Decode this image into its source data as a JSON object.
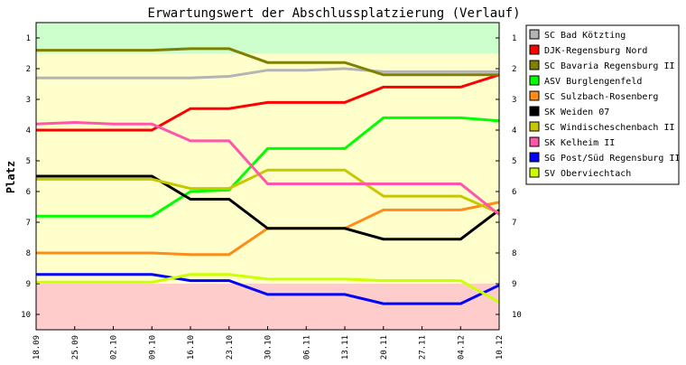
{
  "chart_data": {
    "type": "line",
    "title": "Erwartungswert der Abschlussplatzierung (Verlauf)",
    "ylabel": "Platz",
    "xlabel": "",
    "ylim": [
      10.5,
      0.5
    ],
    "y_inverted": true,
    "y_ticks": [
      "1",
      "2",
      "3",
      "4",
      "5",
      "6",
      "7",
      "8",
      "9",
      "10"
    ],
    "x": [
      "18.09",
      "25.09",
      "02.10",
      "09.10",
      "16.10",
      "23.10",
      "30.10",
      "06.11",
      "13.11",
      "20.11",
      "27.11",
      "04.12",
      "10.12"
    ],
    "zones": [
      {
        "from": 0.5,
        "to": 1.5,
        "color": "#ccffcc"
      },
      {
        "from": 1.5,
        "to": 9.0,
        "color": "#ffffcc"
      },
      {
        "from": 9.0,
        "to": 10.5,
        "color": "#ffcccc"
      }
    ],
    "legend_position": "right",
    "grid": false,
    "series": [
      {
        "name": "SC Bad Kötzting",
        "color": "#b4b4b4",
        "values": [
          2.3,
          2.3,
          2.3,
          2.3,
          2.3,
          2.25,
          2.05,
          2.05,
          2.0,
          2.1,
          2.1,
          2.1,
          2.1
        ]
      },
      {
        "name": "DJK-Regensburg Nord",
        "color": "#ff0000",
        "values": [
          4.0,
          4.0,
          4.0,
          4.0,
          3.3,
          3.3,
          3.1,
          3.1,
          3.1,
          2.6,
          2.6,
          2.6,
          2.2
        ]
      },
      {
        "name": "SC Bavaria Regensburg II",
        "color": "#808000",
        "values": [
          1.4,
          1.4,
          1.4,
          1.4,
          1.35,
          1.35,
          1.8,
          1.8,
          1.8,
          2.2,
          2.2,
          2.2,
          2.2
        ]
      },
      {
        "name": "ASV Burglengenfeld",
        "color": "#00ff00",
        "values": [
          6.8,
          6.8,
          6.8,
          6.8,
          6.0,
          5.95,
          4.6,
          4.6,
          4.6,
          3.6,
          3.6,
          3.6,
          3.7
        ]
      },
      {
        "name": "SC Sulzbach-Rosenberg",
        "color": "#ff8c1a",
        "values": [
          8.0,
          8.0,
          8.0,
          8.0,
          8.05,
          8.05,
          7.2,
          7.2,
          7.2,
          6.6,
          6.6,
          6.6,
          6.35
        ]
      },
      {
        "name": "SK Weiden 07",
        "color": "#000000",
        "values": [
          5.5,
          5.5,
          5.5,
          5.5,
          6.25,
          6.25,
          7.2,
          7.2,
          7.2,
          7.55,
          7.55,
          7.55,
          6.6
        ]
      },
      {
        "name": "SC Windischeschenbach II",
        "color": "#c8c800",
        "values": [
          5.6,
          5.6,
          5.6,
          5.6,
          5.9,
          5.9,
          5.3,
          5.3,
          5.3,
          6.15,
          6.15,
          6.15,
          6.7
        ]
      },
      {
        "name": "SK Kelheim II",
        "color": "#ff55aa",
        "values": [
          3.8,
          3.75,
          3.8,
          3.8,
          4.35,
          4.35,
          5.75,
          5.75,
          5.75,
          5.75,
          5.75,
          5.75,
          6.75
        ]
      },
      {
        "name": "SG Post/Süd Regensburg II",
        "color": "#0000ff",
        "values": [
          8.7,
          8.7,
          8.7,
          8.7,
          8.9,
          8.9,
          9.35,
          9.35,
          9.35,
          9.65,
          9.65,
          9.65,
          9.05
        ]
      },
      {
        "name": "SV Oberviechtach",
        "color": "#ccff00",
        "values": [
          8.95,
          8.95,
          8.95,
          8.95,
          8.7,
          8.7,
          8.85,
          8.85,
          8.85,
          8.9,
          8.9,
          8.9,
          9.6
        ]
      }
    ]
  }
}
